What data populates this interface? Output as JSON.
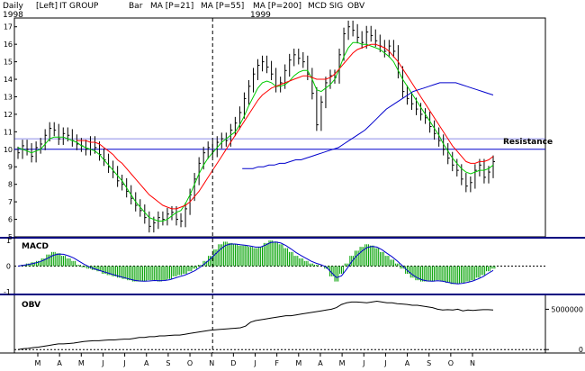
{
  "header": {
    "period": "Daily",
    "side": "[Left]",
    "symbol": "IT GROUP",
    "style": "Bar",
    "year_start": "1998",
    "year_mid": "1999",
    "legend": [
      {
        "label": "MA [P=21]",
        "color": "#00cc00"
      },
      {
        "label": "MA [P=55]",
        "color": "#ff0000"
      },
      {
        "label": "MA [P=200]",
        "color": "#0000cc"
      },
      {
        "label": "MCD SIG",
        "color": "#00aa00"
      },
      {
        "label": "OBV",
        "color": "#000000"
      }
    ]
  },
  "colors": {
    "price": "#000000",
    "ma21": "#00cc00",
    "ma55": "#ff0000",
    "ma200": "#0000cc",
    "macd_hist": "#00a000",
    "macd_signal": "#0000cc",
    "resistance": "#0000cc",
    "panel_divider": "#000080"
  },
  "chart_data": [
    {
      "type": "line",
      "panel": "price",
      "ylim": [
        5,
        17.5
      ],
      "yticks": [
        5,
        6,
        7,
        8,
        9,
        10,
        11,
        12,
        13,
        14,
        15,
        16,
        17
      ],
      "x_month_labels": [
        "M",
        "A",
        "M",
        "J",
        "J",
        "A",
        "S",
        "O",
        "N",
        "D",
        "J",
        "F",
        "M",
        "A",
        "M",
        "J",
        "J",
        "A",
        "S",
        "O",
        "N"
      ],
      "resistance": {
        "label": "Resistance",
        "levels": [
          10.0,
          10.6
        ]
      },
      "series": [
        {
          "name": "Price",
          "values": [
            9.8,
            10.2,
            10.0,
            9.6,
            10.1,
            10.3,
            10.8,
            11.2,
            11.1,
            10.6,
            10.9,
            10.8,
            10.5,
            10.3,
            10.2,
            10.0,
            10.4,
            10.1,
            9.7,
            9.4,
            9.0,
            8.7,
            8.2,
            8.0,
            7.6,
            7.2,
            6.8,
            6.5,
            6.1,
            5.6,
            5.8,
            6.1,
            6.0,
            6.3,
            6.4,
            6.0,
            5.9,
            6.6,
            7.4,
            8.3,
            9.2,
            9.8,
            10.1,
            9.9,
            10.4,
            10.6,
            10.5,
            11.1,
            11.5,
            12.1,
            12.9,
            13.6,
            14.3,
            14.8,
            15.0,
            14.7,
            14.3,
            13.6,
            13.8,
            14.5,
            15.1,
            15.4,
            15.2,
            15.0,
            14.3,
            13.2,
            11.4,
            12.7,
            13.8,
            14.2,
            14.1,
            15.4,
            16.6,
            17.0,
            16.8,
            16.4,
            16.1,
            16.7,
            16.5,
            16.2,
            15.9,
            15.6,
            15.9,
            15.6,
            14.4,
            13.3,
            12.9,
            12.6,
            12.3,
            12.0,
            11.8,
            11.3,
            10.9,
            10.5,
            10.0,
            9.5,
            9.1,
            8.8,
            8.3,
            7.9,
            8.1,
            8.8,
            9.1,
            8.4,
            8.7,
            9.3
          ]
        },
        {
          "name": "MA [P=21]",
          "values": [
            10.1,
            10.0,
            9.9,
            9.8,
            9.9,
            10.0,
            10.3,
            10.6,
            10.7,
            10.7,
            10.7,
            10.6,
            10.5,
            10.4,
            10.2,
            10.1,
            10.0,
            9.9,
            9.7,
            9.4,
            9.1,
            8.8,
            8.5,
            8.2,
            7.8,
            7.4,
            7.0,
            6.7,
            6.4,
            6.1,
            6.0,
            5.9,
            5.9,
            6.0,
            6.2,
            6.4,
            6.5,
            6.9,
            7.4,
            8.0,
            8.6,
            9.1,
            9.5,
            9.8,
            10.1,
            10.4,
            10.6,
            10.8,
            11.0,
            11.4,
            11.9,
            12.5,
            13.0,
            13.5,
            13.8,
            13.9,
            13.8,
            13.6,
            13.6,
            13.7,
            13.9,
            14.2,
            14.4,
            14.5,
            14.5,
            14.0,
            13.4,
            13.3,
            13.5,
            13.7,
            14.0,
            14.6,
            15.3,
            15.8,
            16.1,
            16.1,
            16.0,
            16.0,
            15.9,
            15.8,
            15.7,
            15.5,
            15.3,
            15.0,
            14.5,
            14.0,
            13.6,
            13.2,
            12.8,
            12.4,
            12.0,
            11.6,
            11.2,
            10.8,
            10.3,
            9.9,
            9.5,
            9.2,
            8.9,
            8.7,
            8.6,
            8.7,
            8.8,
            8.8,
            8.9,
            9.1
          ]
        },
        {
          "name": "MA [P=55]",
          "values": [
            null,
            null,
            null,
            null,
            null,
            null,
            null,
            null,
            null,
            null,
            null,
            null,
            null,
            10.5,
            10.5,
            10.5,
            10.4,
            10.4,
            10.3,
            10.1,
            9.9,
            9.7,
            9.4,
            9.2,
            8.9,
            8.6,
            8.3,
            8.0,
            7.7,
            7.4,
            7.2,
            7.0,
            6.8,
            6.7,
            6.6,
            6.6,
            6.7,
            6.8,
            7.0,
            7.3,
            7.6,
            8.0,
            8.4,
            8.8,
            9.2,
            9.6,
            10.0,
            10.4,
            10.8,
            11.2,
            11.6,
            12.0,
            12.4,
            12.8,
            13.1,
            13.3,
            13.5,
            13.6,
            13.7,
            13.8,
            13.9,
            14.0,
            14.1,
            14.2,
            14.2,
            14.1,
            14.0,
            14.0,
            14.0,
            14.1,
            14.3,
            14.6,
            14.9,
            15.2,
            15.5,
            15.7,
            15.8,
            15.9,
            16.0,
            16.0,
            15.9,
            15.8,
            15.6,
            15.3,
            15.0,
            14.6,
            14.2,
            13.8,
            13.4,
            13.0,
            12.6,
            12.2,
            11.8,
            11.4,
            11.0,
            10.6,
            10.2,
            9.9,
            9.6,
            9.3,
            9.2,
            9.2,
            9.3,
            9.3,
            9.4,
            9.6
          ]
        },
        {
          "name": "MA [P=200]",
          "values": [
            null,
            null,
            null,
            null,
            null,
            null,
            null,
            null,
            null,
            null,
            null,
            null,
            null,
            null,
            null,
            null,
            null,
            null,
            null,
            null,
            null,
            null,
            null,
            null,
            null,
            null,
            null,
            null,
            null,
            null,
            null,
            null,
            null,
            null,
            null,
            null,
            null,
            null,
            null,
            null,
            null,
            null,
            8.9,
            8.9,
            8.9,
            9.0,
            9.0,
            9.1,
            9.1,
            9.2,
            9.2,
            9.3,
            9.4,
            9.4,
            9.5,
            9.6,
            9.7,
            9.8,
            9.9,
            10.0,
            10.1,
            10.3,
            10.5,
            10.7,
            10.9,
            11.1,
            11.4,
            11.7,
            12.0,
            12.3,
            12.5,
            12.7,
            12.9,
            13.1,
            13.3,
            13.4,
            13.5,
            13.6,
            13.7,
            13.8,
            13.8,
            13.8,
            13.8,
            13.7,
            13.6,
            13.5,
            13.4,
            13.3,
            13.2,
            13.1
          ]
        }
      ]
    },
    {
      "type": "bar",
      "panel": "macd",
      "ylim": [
        -1,
        1
      ],
      "yticks": [
        -1,
        0,
        1
      ],
      "series": [
        {
          "name": "MACD",
          "values": [
            0.0,
            0.05,
            0.1,
            0.15,
            0.2,
            0.3,
            0.45,
            0.55,
            0.5,
            0.4,
            0.3,
            0.2,
            0.05,
            -0.05,
            -0.1,
            -0.15,
            -0.2,
            -0.3,
            -0.35,
            -0.4,
            -0.45,
            -0.5,
            -0.55,
            -0.6,
            -0.6,
            -0.6,
            -0.55,
            -0.55,
            -0.6,
            -0.55,
            -0.5,
            -0.4,
            -0.35,
            -0.3,
            -0.2,
            -0.1,
            0.05,
            0.2,
            0.4,
            0.65,
            0.85,
            0.95,
            0.9,
            0.85,
            0.8,
            0.8,
            0.75,
            0.7,
            0.75,
            0.9,
            1.0,
            0.95,
            0.85,
            0.7,
            0.55,
            0.4,
            0.3,
            0.2,
            0.1,
            0.05,
            0.0,
            -0.1,
            -0.4,
            -0.6,
            -0.3,
            0.1,
            0.4,
            0.6,
            0.75,
            0.85,
            0.8,
            0.7,
            0.55,
            0.4,
            0.25,
            0.1,
            -0.1,
            -0.3,
            -0.45,
            -0.55,
            -0.6,
            -0.6,
            -0.6,
            -0.55,
            -0.6,
            -0.65,
            -0.7,
            -0.7,
            -0.65,
            -0.6,
            -0.55,
            -0.45,
            -0.35,
            -0.2,
            -0.1
          ]
        },
        {
          "name": "MCD SIG",
          "values": [
            0.0,
            0.03,
            0.06,
            0.1,
            0.15,
            0.22,
            0.32,
            0.42,
            0.47,
            0.46,
            0.4,
            0.32,
            0.2,
            0.08,
            -0.02,
            -0.1,
            -0.16,
            -0.22,
            -0.28,
            -0.34,
            -0.4,
            -0.45,
            -0.5,
            -0.55,
            -0.58,
            -0.59,
            -0.58,
            -0.56,
            -0.57,
            -0.56,
            -0.53,
            -0.47,
            -0.41,
            -0.35,
            -0.27,
            -0.18,
            -0.05,
            0.1,
            0.27,
            0.46,
            0.65,
            0.8,
            0.86,
            0.86,
            0.83,
            0.81,
            0.78,
            0.74,
            0.74,
            0.82,
            0.92,
            0.94,
            0.9,
            0.8,
            0.67,
            0.53,
            0.41,
            0.3,
            0.19,
            0.11,
            0.05,
            -0.04,
            -0.25,
            -0.45,
            -0.38,
            -0.12,
            0.17,
            0.4,
            0.58,
            0.72,
            0.77,
            0.74,
            0.64,
            0.5,
            0.36,
            0.2,
            0.02,
            -0.17,
            -0.33,
            -0.46,
            -0.54,
            -0.58,
            -0.59,
            -0.57,
            -0.59,
            -0.63,
            -0.67,
            -0.69,
            -0.67,
            -0.63,
            -0.58,
            -0.5,
            -0.41,
            -0.28,
            -0.17
          ]
        }
      ]
    },
    {
      "type": "line",
      "panel": "obv",
      "ylim": [
        -200000,
        6500000
      ],
      "yticks": [
        0,
        5000000
      ],
      "series": [
        {
          "name": "OBV",
          "values": [
            0,
            100000,
            150000,
            250000,
            300000,
            400000,
            500000,
            600000,
            700000,
            700000,
            750000,
            800000,
            900000,
            1000000,
            1050000,
            1100000,
            1100000,
            1150000,
            1200000,
            1200000,
            1250000,
            1300000,
            1300000,
            1400000,
            1500000,
            1500000,
            1600000,
            1600000,
            1700000,
            1700000,
            1750000,
            1800000,
            1800000,
            1900000,
            2000000,
            2100000,
            2200000,
            2300000,
            2400000,
            2450000,
            2500000,
            2550000,
            2600000,
            2650000,
            2700000,
            2900000,
            3400000,
            3600000,
            3700000,
            3800000,
            3900000,
            4000000,
            4100000,
            4200000,
            4200000,
            4300000,
            4400000,
            4500000,
            4600000,
            4700000,
            4800000,
            4900000,
            5000000,
            5200000,
            5600000,
            5800000,
            5900000,
            5900000,
            5850000,
            5800000,
            5900000,
            6000000,
            5900000,
            5800000,
            5800000,
            5700000,
            5650000,
            5600000,
            5500000,
            5500000,
            5400000,
            5300000,
            5200000,
            5000000,
            4900000,
            4950000,
            4900000,
            5000000,
            4800000,
            4900000,
            4850000,
            4900000,
            4950000,
            4950000,
            4900000
          ]
        }
      ]
    }
  ]
}
